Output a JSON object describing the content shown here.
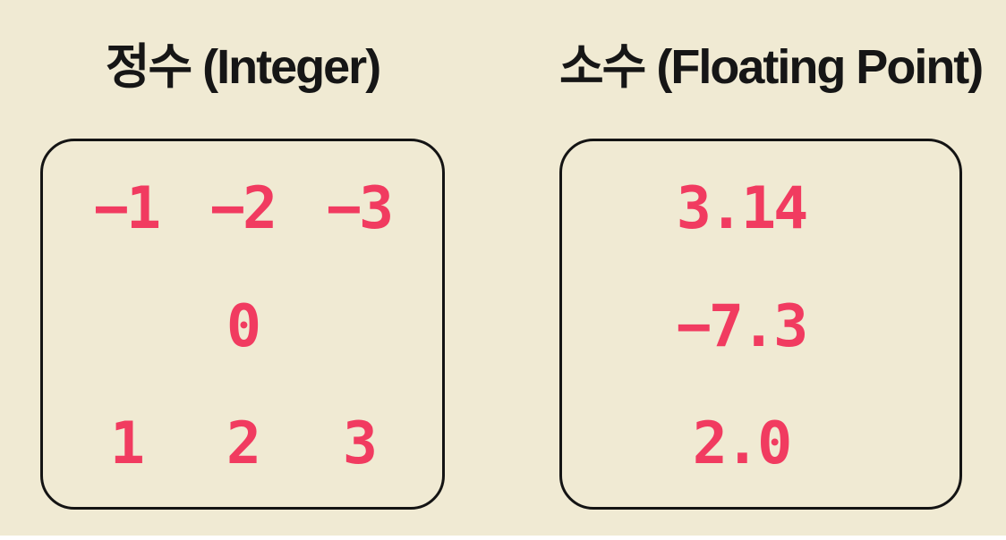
{
  "slide": {
    "background_color": "#F0EAD3",
    "accent_number_color": "#F13B60",
    "stroke_color": "#141414"
  },
  "panels": [
    {
      "id": "integer",
      "title": "정수 (Integer)",
      "rows": [
        [
          "−1",
          "−2",
          "−3"
        ],
        [
          "0"
        ],
        [
          "1",
          "2",
          "3"
        ]
      ]
    },
    {
      "id": "float",
      "title": "소수 (Floating Point)",
      "rows": [
        [
          "3.14"
        ],
        [
          "−7.3"
        ],
        [
          "2.0"
        ]
      ]
    }
  ]
}
